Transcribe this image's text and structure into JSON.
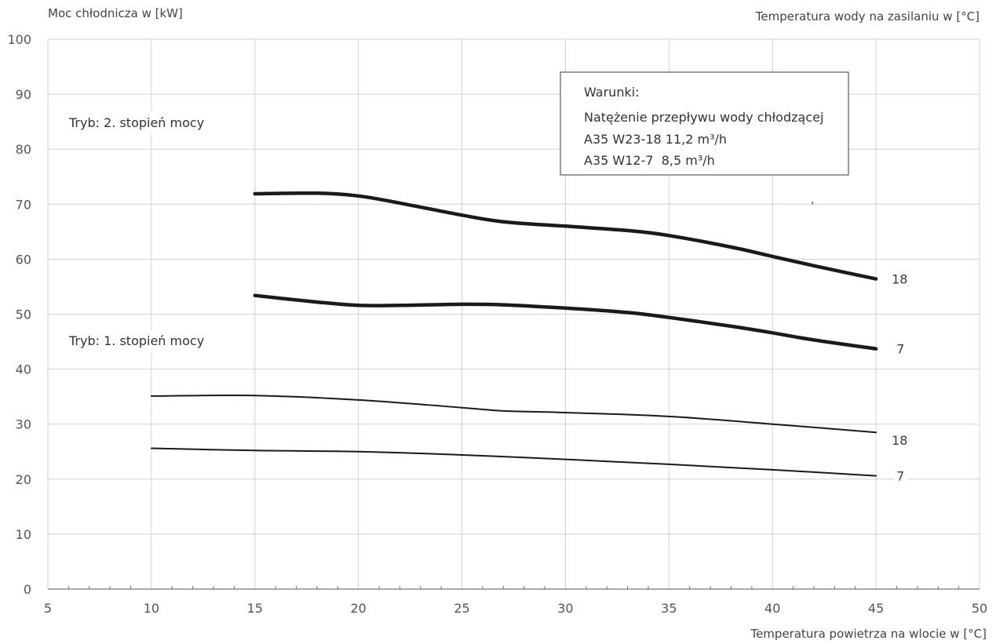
{
  "chart_data": {
    "type": "line",
    "ylabel": "Moc chłodnicza w [kW]",
    "xlabel": "Temperatura powietrza na wlocie w [°C]",
    "legend_title": "Temperatura wody na zasilaniu w [°C]",
    "xlim": [
      5,
      50
    ],
    "ylim": [
      0,
      100
    ],
    "x_ticks": [
      "5",
      "10",
      "15",
      "20",
      "25",
      "30",
      "35",
      "40",
      "45",
      "50"
    ],
    "y_ticks": [
      "0",
      "10",
      "20",
      "30",
      "40",
      "50",
      "60",
      "70",
      "80",
      "90",
      "100"
    ],
    "grid": true,
    "line_color": "#1a1a1a",
    "mode_labels": [
      "Tryb: 2. stopień mocy",
      "Tryb: 1. stopień mocy"
    ],
    "conditions_box": {
      "lines": [
        "Warunki:",
        "Natężenie przepływu wody chłodzącej",
        "A35 W23-18 11,2 m³/h",
        "A35 W12-7  8,5 m³/h"
      ]
    },
    "stray_mark": ",",
    "series": [
      {
        "name": "18",
        "mode": "2",
        "x": [
          15,
          18,
          20,
          22,
          25,
          27,
          30,
          33,
          35,
          38,
          40,
          42,
          45
        ],
        "y": [
          71.9,
          72.0,
          71.5,
          70.2,
          68.0,
          66.8,
          66.0,
          65.2,
          64.3,
          62.2,
          60.5,
          58.8,
          56.4
        ]
      },
      {
        "name": "7",
        "mode": "2",
        "x": [
          15,
          18,
          20,
          22,
          25,
          27,
          30,
          33,
          35,
          38,
          40,
          42,
          45
        ],
        "y": [
          53.4,
          52.2,
          51.6,
          51.6,
          51.8,
          51.7,
          51.1,
          50.3,
          49.4,
          47.8,
          46.6,
          45.3,
          43.7
        ]
      },
      {
        "name": "18",
        "mode": "1",
        "x": [
          10,
          15,
          20,
          25,
          27,
          30,
          35,
          40,
          45
        ],
        "y": [
          35.1,
          35.2,
          34.4,
          33.0,
          32.4,
          32.1,
          31.4,
          30.0,
          28.5
        ]
      },
      {
        "name": "7",
        "mode": "1",
        "x": [
          10,
          15,
          20,
          25,
          30,
          35,
          40,
          45
        ],
        "y": [
          25.6,
          25.2,
          25.0,
          24.4,
          23.6,
          22.7,
          21.7,
          20.6
        ]
      }
    ]
  }
}
